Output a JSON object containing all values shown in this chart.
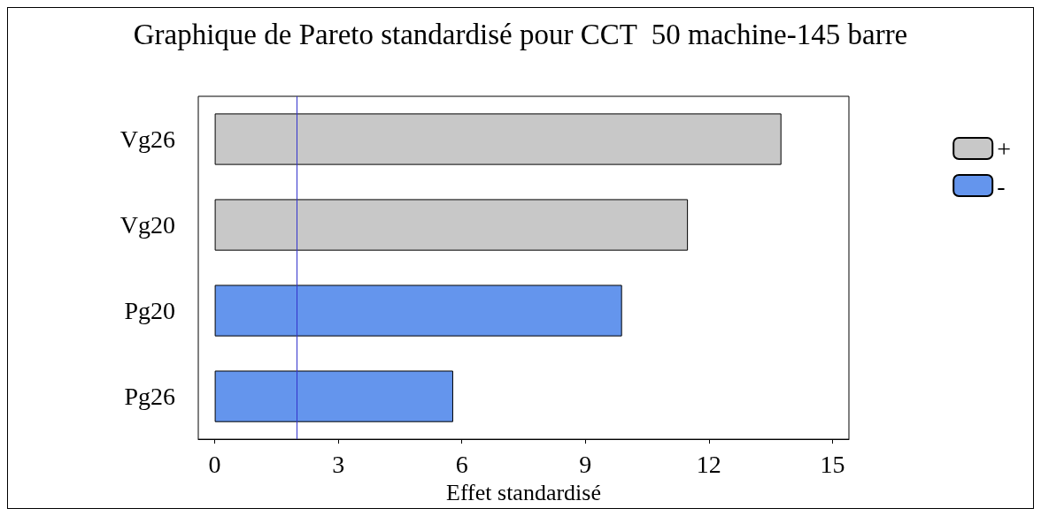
{
  "chart_data": {
    "type": "bar",
    "orientation": "horizontal",
    "stacked": true,
    "title": "Graphique de Pareto standardisé pour CCT  50 machine-145 barre",
    "xlabel": "Effet standardisé",
    "categories": [
      "Vg26",
      "Vg20",
      "Pg20",
      "Pg26"
    ],
    "series": [
      {
        "name": "+",
        "color": "#c8c8c8",
        "values": [
          13.76,
          11.49,
          null,
          null
        ]
      },
      {
        "name": "-",
        "color": "#6495ed",
        "values": [
          null,
          null,
          9.89,
          5.79
        ]
      }
    ],
    "xlim": [
      -0.4,
      15.4
    ],
    "xticks": [
      0,
      3,
      6,
      9,
      12,
      15
    ],
    "ref_lines": [
      {
        "axis": "x",
        "value": 2,
        "color": "#3333cc"
      }
    ],
    "legend": "right"
  }
}
